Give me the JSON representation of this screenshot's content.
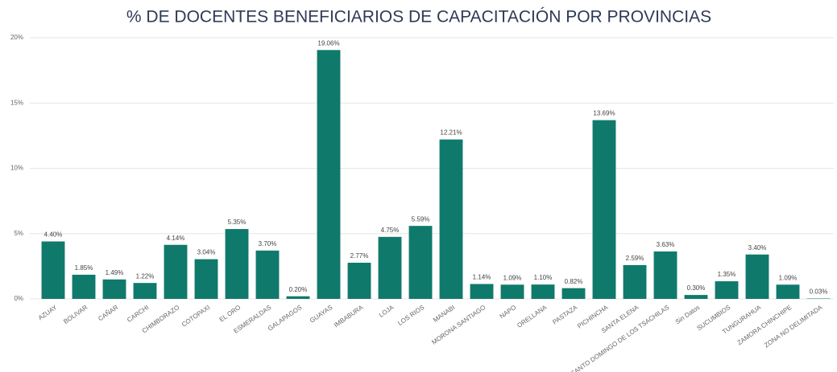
{
  "chart_data": {
    "type": "bar",
    "title": "% DE DOCENTES BENEFICIARIOS DE CAPACITACIÓN POR PROVINCIAS",
    "categories": [
      "AZUAY",
      "BOLIVAR",
      "CAÑAR",
      "CARCHI",
      "CHIMBORAZO",
      "COTOPAXI",
      "EL ORO",
      "ESMERALDAS",
      "GALAPAGOS",
      "GUAYAS",
      "IMBABURA",
      "LOJA",
      "LOS RIOS",
      "MANABI",
      "MORONA SANTIAGO",
      "NAPO",
      "ORELLANA",
      "PASTAZA",
      "PICHINCHA",
      "SANTA ELENA",
      "SANTO DOMINGO DE LOS TSACHILAS",
      "Sin Datos",
      "SUCUMBIOS",
      "TUNGURAHUA",
      "ZAMORA CHINCHIPE",
      "ZONA NO DELIMITADA"
    ],
    "values": [
      4.4,
      1.85,
      1.49,
      1.22,
      4.14,
      3.04,
      5.35,
      3.7,
      0.2,
      19.06,
      2.77,
      4.75,
      5.59,
      12.21,
      1.14,
      1.09,
      1.1,
      0.82,
      13.69,
      2.59,
      3.63,
      0.3,
      1.35,
      3.4,
      1.09,
      0.03
    ],
    "value_labels": [
      "4.40%",
      "1.85%",
      "1.49%",
      "1.22%",
      "4.14%",
      "3.04%",
      "5.35%",
      "3.70%",
      "0.20%",
      "19.06%",
      "2.77%",
      "4.75%",
      "5.59%",
      "12.21%",
      "1.14%",
      "1.09%",
      "1.10%",
      "0.82%",
      "13.69%",
      "2.59%",
      "3.63%",
      "0.30%",
      "1.35%",
      "3.40%",
      "1.09%",
      "0.03%"
    ],
    "color": "#0f7a6b",
    "ylim": [
      0,
      20
    ],
    "yticks": [
      {
        "value": 0,
        "label": "0%"
      },
      {
        "value": 5,
        "label": "5%"
      },
      {
        "value": 10,
        "label": "10%"
      },
      {
        "value": 15,
        "label": "15%"
      },
      {
        "value": 20,
        "label": "20%"
      }
    ],
    "grid": true
  }
}
